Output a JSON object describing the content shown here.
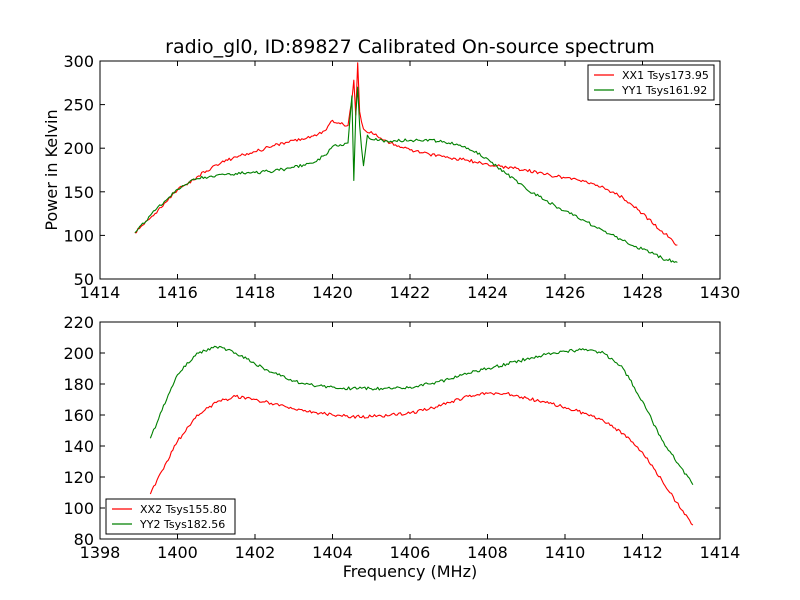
{
  "figure": {
    "title": "radio_gl0, ID:89827 Calibrated On-source spectrum"
  },
  "chart_data": [
    {
      "type": "line",
      "title": "radio_gl0, ID:89827 Calibrated On-source spectrum",
      "xlabel": "",
      "ylabel": "Power in Kelvin",
      "xlim": [
        1414,
        1430
      ],
      "ylim": [
        50,
        300
      ],
      "xticks": [
        1414,
        1416,
        1418,
        1420,
        1422,
        1424,
        1426,
        1428,
        1430
      ],
      "yticks": [
        50,
        100,
        150,
        200,
        250,
        300
      ],
      "grid": false,
      "legend_position": "top-right",
      "series": [
        {
          "name": "XX1 Tsys173.95",
          "color": "#ff0000",
          "x": [
            1414.9,
            1415.3,
            1415.7,
            1416.0,
            1416.5,
            1417.0,
            1417.5,
            1418.0,
            1418.5,
            1419.0,
            1419.5,
            1419.8,
            1420.0,
            1420.2,
            1420.4,
            1420.5,
            1420.55,
            1420.6,
            1420.65,
            1420.7,
            1420.75,
            1420.8,
            1420.9,
            1421.0,
            1421.2,
            1421.5,
            1422.0,
            1422.5,
            1423.0,
            1423.5,
            1424.0,
            1424.5,
            1425.0,
            1425.5,
            1426.0,
            1426.5,
            1427.0,
            1427.5,
            1428.0,
            1428.5,
            1428.9
          ],
          "y": [
            103,
            120,
            138,
            152,
            167,
            181,
            190,
            196,
            203,
            209,
            214,
            220,
            232,
            228,
            226,
            255,
            278,
            238,
            298,
            242,
            230,
            222,
            218,
            219,
            212,
            206,
            198,
            193,
            189,
            186,
            182,
            178,
            175,
            170,
            166,
            162,
            155,
            143,
            125,
            105,
            89
          ]
        },
        {
          "name": "YY1 Tsys161.92",
          "color": "#008000",
          "x": [
            1414.9,
            1415.3,
            1415.7,
            1416.0,
            1416.5,
            1417.0,
            1417.5,
            1418.0,
            1418.5,
            1419.0,
            1419.5,
            1419.8,
            1420.0,
            1420.2,
            1420.4,
            1420.5,
            1420.55,
            1420.6,
            1420.65,
            1420.7,
            1420.75,
            1420.8,
            1420.9,
            1421.0,
            1421.2,
            1421.5,
            1422.0,
            1422.5,
            1423.0,
            1423.5,
            1424.0,
            1424.5,
            1425.0,
            1425.5,
            1426.0,
            1426.5,
            1427.0,
            1427.5,
            1428.0,
            1428.5,
            1428.9
          ],
          "y": [
            103,
            123,
            140,
            153,
            165,
            169,
            171,
            172,
            174,
            178,
            183,
            192,
            202,
            204,
            206,
            260,
            163,
            238,
            270,
            226,
            200,
            180,
            215,
            210,
            209,
            208,
            209,
            210,
            206,
            200,
            188,
            170,
            153,
            140,
            128,
            117,
            105,
            94,
            84,
            74,
            69
          ]
        }
      ]
    },
    {
      "type": "line",
      "title": "",
      "xlabel": "Frequency (MHz)",
      "ylabel": "",
      "xlim": [
        1398,
        1414
      ],
      "ylim": [
        80,
        220
      ],
      "xticks": [
        1398,
        1400,
        1402,
        1404,
        1406,
        1408,
        1410,
        1412,
        1414
      ],
      "yticks": [
        80,
        100,
        120,
        140,
        160,
        180,
        200,
        220
      ],
      "grid": false,
      "legend_position": "bottom-left",
      "series": [
        {
          "name": "XX2 Tsys155.80",
          "color": "#ff0000",
          "x": [
            1399.3,
            1399.6,
            1400.0,
            1400.5,
            1401.0,
            1401.5,
            1402.0,
            1402.5,
            1403.0,
            1403.5,
            1404.0,
            1404.5,
            1405.0,
            1405.5,
            1406.0,
            1406.5,
            1407.0,
            1407.5,
            1408.0,
            1408.5,
            1409.0,
            1409.5,
            1410.0,
            1410.5,
            1411.0,
            1411.5,
            1412.0,
            1412.5,
            1413.0,
            1413.3
          ],
          "y": [
            109,
            124,
            143,
            160,
            168,
            172,
            170,
            167,
            164,
            162,
            160,
            159,
            159,
            160,
            161,
            164,
            168,
            172,
            174,
            174,
            171,
            168,
            165,
            161,
            156,
            148,
            136,
            118,
            99,
            89
          ]
        },
        {
          "name": "YY2 Tsys182.56",
          "color": "#008000",
          "x": [
            1399.3,
            1399.6,
            1400.0,
            1400.5,
            1401.0,
            1401.5,
            1402.0,
            1402.5,
            1403.0,
            1403.5,
            1404.0,
            1404.5,
            1405.0,
            1405.5,
            1406.0,
            1406.5,
            1407.0,
            1407.5,
            1408.0,
            1408.5,
            1409.0,
            1409.5,
            1410.0,
            1410.5,
            1411.0,
            1411.5,
            1412.0,
            1412.5,
            1413.0,
            1413.3
          ],
          "y": [
            145,
            163,
            186,
            200,
            204,
            200,
            193,
            187,
            182,
            179,
            178,
            177,
            177,
            177,
            178,
            180,
            183,
            187,
            190,
            193,
            196,
            199,
            201,
            202,
            200,
            190,
            169,
            144,
            126,
            115
          ]
        }
      ]
    }
  ]
}
